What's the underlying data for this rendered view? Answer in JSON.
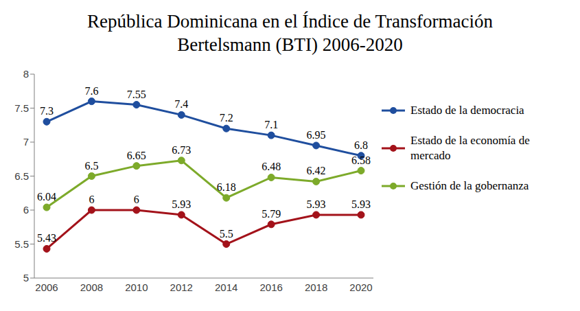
{
  "chart_data": {
    "type": "line",
    "title": "República Dominicana en el Índice de Transformación\nBertelsmann (BTI) 2006-2020",
    "categories": [
      "2006",
      "2008",
      "2010",
      "2012",
      "2014",
      "2016",
      "2018",
      "2020"
    ],
    "series": [
      {
        "name": "Estado de la democracia",
        "color": "#1F4E9E",
        "values": [
          7.3,
          7.6,
          7.55,
          7.4,
          7.2,
          7.1,
          6.95,
          6.8
        ]
      },
      {
        "name": "Estado de la economía de mercado",
        "color": "#A3121A",
        "values": [
          5.43,
          6,
          6,
          5.93,
          5.5,
          5.79,
          5.93,
          5.93
        ]
      },
      {
        "name": "Gestión de la gobernanza",
        "color": "#7DAA2A",
        "values": [
          6.04,
          6.5,
          6.65,
          6.73,
          6.18,
          6.48,
          6.42,
          6.58
        ]
      }
    ],
    "ylim": [
      5,
      8
    ],
    "yticks": [
      5,
      5.5,
      6,
      6.5,
      7,
      7.5,
      8
    ],
    "grid": false,
    "legend": "right",
    "data_labels": true,
    "marker": "circle",
    "line_style": "solid"
  }
}
